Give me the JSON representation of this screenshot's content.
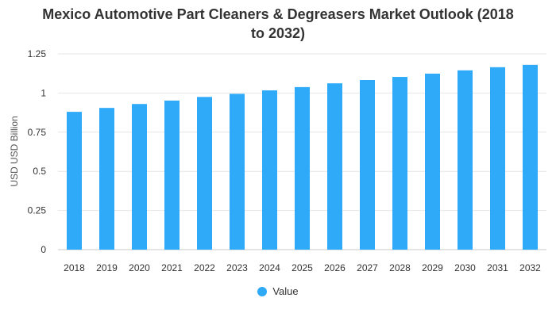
{
  "chart_data": {
    "type": "bar",
    "title_lines": [
      "Mexico Automotive Part Cleaners & Degreasers Market Outlook (2018",
      "to 2032)"
    ],
    "ylabel": "USD USD Billion",
    "xlabel": "",
    "categories": [
      "2018",
      "2019",
      "2020",
      "2021",
      "2022",
      "2023",
      "2024",
      "2025",
      "2026",
      "2027",
      "2028",
      "2029",
      "2030",
      "2031",
      "2032"
    ],
    "series": [
      {
        "name": "Value",
        "color": "#2eaaf8",
        "values": [
          0.88,
          0.905,
          0.93,
          0.952,
          0.975,
          0.995,
          1.017,
          1.038,
          1.062,
          1.083,
          1.103,
          1.124,
          1.145,
          1.165,
          1.18
        ]
      }
    ],
    "ylim": [
      0,
      1.25
    ],
    "yticks": [
      "0",
      "0.25",
      "0.5",
      "0.75",
      "1",
      "1.25"
    ],
    "ytick_values": [
      0,
      0.25,
      0.5,
      0.75,
      1,
      1.25
    ],
    "grid": true,
    "legend_position": "bottom-center"
  }
}
